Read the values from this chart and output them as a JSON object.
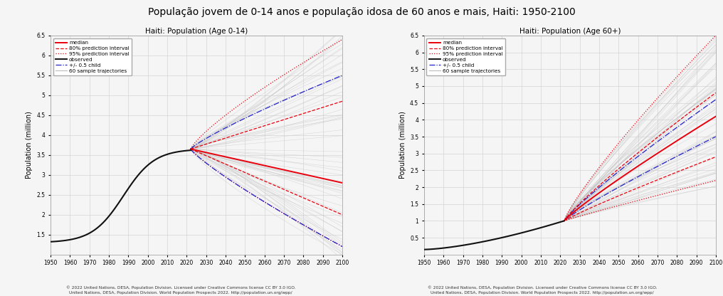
{
  "title": "População jovem de 0-14 anos e população idosa de 60 anos e mais, Haiti: 1950-2100",
  "title_fontsize": 10,
  "subplot1_title": "Haiti: Population (Age 0-14)",
  "subplot2_title": "Haiti: Population (Age 60+)",
  "ylabel": "Population (million)",
  "xlim": [
    1950,
    2100
  ],
  "ylim1": [
    1.0,
    6.5
  ],
  "ylim2": [
    0.0,
    6.5
  ],
  "yticks1": [
    1.5,
    2.0,
    2.5,
    3.0,
    3.5,
    4.0,
    4.5,
    5.0,
    5.5,
    6.0,
    6.5
  ],
  "yticks2": [
    0.5,
    1.0,
    1.5,
    2.0,
    2.5,
    3.0,
    3.5,
    4.0,
    4.5,
    5.0,
    5.5,
    6.0,
    6.5
  ],
  "xticks": [
    1950,
    1960,
    1970,
    1980,
    1990,
    2000,
    2010,
    2020,
    2030,
    2040,
    2050,
    2060,
    2070,
    2080,
    2090,
    2100
  ],
  "footnote1": "© 2022 United Nations, DESA, Population Division. Licensed under Creative Commons license CC BY 3.0 IGO.\nUnited Nations, DESA, Population Division. World Population Prospects 2022. http://population.un.org/wpp/",
  "footnote2": "© 2022 United Nations, DESA, Population Division. Licensed under Creative Commons license CC BY 3.0 IGO.\nUnited Nations, DESA, Population Division. World Population Prospects 2022. http://population.un.org/wpp/",
  "color_median": "#e8000d",
  "color_80pi": "#e8000d",
  "color_95pi": "#e8000d",
  "color_obs": "#111111",
  "color_05child": "#2222cc",
  "color_traj": "#bbbbbb",
  "background_color": "#f5f5f5",
  "grid_color": "#cccccc"
}
